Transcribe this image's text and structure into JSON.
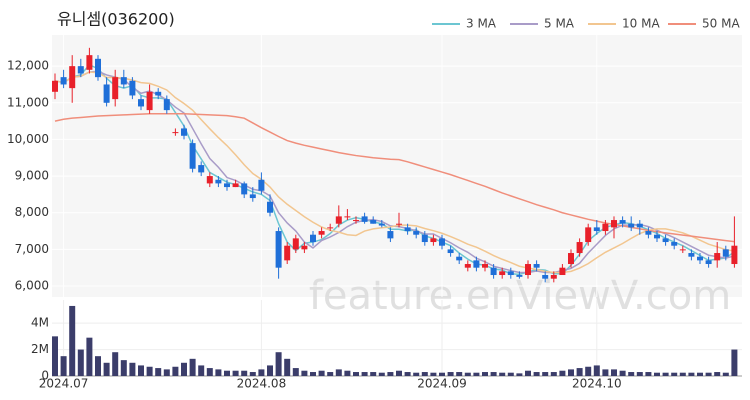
{
  "chart_data": {
    "type": "candlestick",
    "title": "유니셈(036200)",
    "annotation": "feature.enViewV.com",
    "categories": [
      null,
      "2024.07",
      null,
      null,
      null,
      null,
      null,
      null,
      null,
      null,
      null,
      null,
      null,
      null,
      null,
      null,
      null,
      null,
      null,
      null,
      null,
      null,
      null,
      null,
      "2024.08",
      null,
      null,
      null,
      null,
      null,
      null,
      null,
      null,
      null,
      null,
      null,
      null,
      null,
      null,
      null,
      null,
      null,
      null,
      null,
      null,
      "2024.09",
      null,
      null,
      null,
      null,
      null,
      null,
      null,
      null,
      null,
      null,
      null,
      null,
      null,
      null,
      null,
      null,
      null,
      "2024.10",
      null,
      null,
      null,
      null,
      null,
      null,
      null,
      null,
      null,
      null,
      null,
      null,
      null,
      null,
      null,
      null
    ],
    "open": [
      11300,
      11700,
      11400,
      12000,
      11900,
      12200,
      11500,
      11100,
      11700,
      11600,
      11100,
      10800,
      11300,
      11100,
      10200,
      10300,
      9900,
      9300,
      8800,
      8900,
      8800,
      8700,
      8800,
      8500,
      8900,
      8300,
      7500,
      6700,
      7000,
      7000,
      7400,
      7400,
      7600,
      7700,
      7900,
      7800,
      7900,
      7800,
      7700,
      7500,
      7700,
      7600,
      7500,
      7400,
      7200,
      7300,
      7000,
      6800,
      6500,
      6700,
      6500,
      6500,
      6300,
      6400,
      6300,
      6300,
      6600,
      6300,
      6200,
      6300,
      6600,
      6900,
      7200,
      7600,
      7500,
      7600,
      7800,
      7700,
      7700,
      7500,
      7400,
      7300,
      7200,
      7000,
      6900,
      6800,
      6700,
      6700,
      7000,
      6600
    ],
    "high": [
      11800,
      11900,
      12300,
      12200,
      12500,
      12300,
      11700,
      11900,
      11900,
      11700,
      11200,
      11500,
      11400,
      11200,
      10300,
      10400,
      10000,
      9400,
      9100,
      9000,
      8900,
      8900,
      8850,
      8700,
      9100,
      8500,
      7600,
      7200,
      7400,
      7200,
      7500,
      7600,
      7700,
      8200,
      8100,
      7900,
      8000,
      7900,
      7800,
      7600,
      8000,
      7700,
      7600,
      7500,
      7400,
      7400,
      7100,
      6900,
      6700,
      6800,
      6700,
      6600,
      6500,
      6500,
      6400,
      6700,
      6700,
      6400,
      6400,
      6600,
      7000,
      7300,
      7700,
      7800,
      7800,
      7900,
      7900,
      7900,
      7800,
      7600,
      7500,
      7400,
      7300,
      7100,
      7000,
      6900,
      6800,
      7200,
      7100,
      7900
    ],
    "low": [
      11100,
      11400,
      11000,
      11700,
      11800,
      11600,
      10900,
      10900,
      11400,
      11100,
      10800,
      10700,
      11100,
      10700,
      10100,
      10000,
      9100,
      9000,
      8700,
      8700,
      8600,
      8700,
      8400,
      8300,
      8500,
      7900,
      6200,
      6600,
      6900,
      6900,
      7100,
      7300,
      7500,
      7600,
      7800,
      7700,
      7700,
      7700,
      7600,
      7200,
      7600,
      7400,
      7300,
      7100,
      7100,
      7000,
      6800,
      6600,
      6400,
      6400,
      6400,
      6200,
      6200,
      6200,
      6200,
      6200,
      6400,
      6100,
      6100,
      6300,
      6500,
      6800,
      7100,
      7400,
      7400,
      7300,
      7600,
      7500,
      7400,
      7300,
      7200,
      7100,
      7000,
      6900,
      6700,
      6600,
      6500,
      6500,
      6700,
      6500
    ],
    "close": [
      11600,
      11500,
      12000,
      11800,
      12300,
      11700,
      11000,
      11700,
      11500,
      11200,
      10900,
      11300,
      11200,
      10800,
      10200,
      10100,
      9200,
      9100,
      9000,
      8800,
      8700,
      8800,
      8500,
      8400,
      8600,
      8000,
      6500,
      7100,
      7300,
      7100,
      7200,
      7500,
      7600,
      7900,
      7900,
      7800,
      7750,
      7700,
      7650,
      7300,
      7700,
      7500,
      7400,
      7200,
      7300,
      7100,
      6900,
      6700,
      6600,
      6500,
      6600,
      6300,
      6400,
      6300,
      6250,
      6600,
      6500,
      6200,
      6300,
      6500,
      6900,
      7200,
      7600,
      7500,
      7700,
      7800,
      7700,
      7600,
      7600,
      7400,
      7300,
      7200,
      7100,
      7000,
      6800,
      6700,
      6600,
      6900,
      6800,
      7100
    ],
    "up_color": "#e8202a",
    "down_color": "#1f6fd8",
    "ylim": [
      5700,
      12850
    ],
    "yticks": [
      {
        "value": 6000,
        "label": "6,000"
      },
      {
        "value": 7000,
        "label": "7,000"
      },
      {
        "value": 8000,
        "label": "8,000"
      },
      {
        "value": 9000,
        "label": "9,000"
      },
      {
        "value": 10000,
        "label": "10,000"
      },
      {
        "value": 11000,
        "label": "11,000"
      },
      {
        "value": 12000,
        "label": "12,000"
      }
    ],
    "grid": true,
    "legend": "top-right",
    "series": [
      {
        "name": "3 MA",
        "color": "#6cc6d2",
        "values": [
          11600,
          11550,
          11700,
          11767,
          12033,
          11933,
          11667,
          11467,
          11400,
          11467,
          11200,
          11133,
          11133,
          11100,
          10733,
          10367,
          9833,
          9467,
          9100,
          8967,
          8833,
          8767,
          8667,
          8567,
          8500,
          8333,
          7700,
          7200,
          6967,
          7167,
          7200,
          7267,
          7433,
          7667,
          7800,
          7867,
          7817,
          7750,
          7700,
          7550,
          7550,
          7500,
          7533,
          7367,
          7300,
          7200,
          7100,
          6900,
          6733,
          6600,
          6567,
          6467,
          6433,
          6333,
          6317,
          6383,
          6450,
          6433,
          6333,
          6333,
          6567,
          6867,
          7233,
          7433,
          7600,
          7667,
          7733,
          7700,
          7633,
          7533,
          7433,
          7300,
          7200,
          7100,
          6967,
          6833,
          6700,
          6733,
          6767,
          6933
        ]
      },
      {
        "name": "5 MA",
        "color": "#a99cc8",
        "values": [
          11600,
          11550,
          11700,
          11725,
          11840,
          11860,
          11760,
          11700,
          11640,
          11420,
          11260,
          11320,
          11220,
          11080,
          10880,
          10720,
          10300,
          9880,
          9480,
          9240,
          8960,
          8880,
          8760,
          8640,
          8600,
          8460,
          8000,
          7720,
          7500,
          7200,
          7040,
          7240,
          7340,
          7460,
          7620,
          7740,
          7790,
          7810,
          7760,
          7640,
          7620,
          7570,
          7510,
          7420,
          7420,
          7300,
          7180,
          7040,
          6920,
          6760,
          6660,
          6540,
          6480,
          6420,
          6370,
          6370,
          6410,
          6370,
          6370,
          6420,
          6480,
          6620,
          6900,
          7140,
          7380,
          7560,
          7660,
          7660,
          7680,
          7620,
          7520,
          7420,
          7320,
          7200,
          7080,
          6960,
          6840,
          6800,
          6760,
          6820
        ]
      },
      {
        "name": "10 MA",
        "color": "#f2c690",
        "values": [
          11600,
          11550,
          11700,
          11725,
          11840,
          11820,
          11690,
          11690,
          11670,
          11620,
          11550,
          11530,
          11450,
          11350,
          11140,
          10980,
          10800,
          10540,
          10290,
          10050,
          9830,
          9580,
          9310,
          9070,
          8910,
          8700,
          8430,
          8230,
          8060,
          7890,
          7740,
          7610,
          7520,
          7470,
          7400,
          7380,
          7500,
          7560,
          7590,
          7610,
          7660,
          7660,
          7640,
          7570,
          7510,
          7440,
          7350,
          7250,
          7140,
          7060,
          6950,
          6830,
          6730,
          6640,
          6540,
          6490,
          6450,
          6400,
          6370,
          6370,
          6400,
          6490,
          6610,
          6770,
          6920,
          7040,
          7160,
          7300,
          7430,
          7520,
          7560,
          7560,
          7510,
          7450,
          7360,
          7250,
          7140,
          7070,
          6990,
          6960
        ]
      },
      {
        "name": "50 MA",
        "color": "#f08e7b",
        "values": [
          10500,
          10550,
          10580,
          10600,
          10620,
          10640,
          10650,
          10660,
          10670,
          10680,
          10690,
          10700,
          10700,
          10700,
          10700,
          10700,
          10690,
          10680,
          10670,
          10660,
          10650,
          10620,
          10580,
          10450,
          10320,
          10200,
          10080,
          9970,
          9900,
          9840,
          9790,
          9740,
          9690,
          9640,
          9600,
          9560,
          9530,
          9500,
          9480,
          9460,
          9450,
          9390,
          9320,
          9250,
          9180,
          9110,
          9040,
          8960,
          8880,
          8800,
          8720,
          8630,
          8540,
          8460,
          8380,
          8300,
          8220,
          8150,
          8080,
          8000,
          7940,
          7880,
          7820,
          7770,
          7720,
          7680,
          7640,
          7600,
          7560,
          7520,
          7480,
          7450,
          7420,
          7390,
          7360,
          7330,
          7300,
          7270,
          7240,
          7210
        ]
      }
    ],
    "volume": {
      "color": "#3b3d6a",
      "ylim": [
        0,
        5750000
      ],
      "yticks": [
        0,
        {
          "value": 2000000,
          "label": "2M"
        },
        {
          "value": 4000000,
          "label": "4M"
        }
      ],
      "values": [
        3000000,
        1500000,
        5300000,
        2000000,
        2900000,
        1500000,
        1000000,
        1800000,
        1200000,
        1000000,
        800000,
        700000,
        600000,
        500000,
        700000,
        1000000,
        1300000,
        800000,
        600000,
        500000,
        400000,
        400000,
        400000,
        300000,
        500000,
        800000,
        1800000,
        1300000,
        600000,
        400000,
        300000,
        400000,
        300000,
        500000,
        400000,
        300000,
        300000,
        300000,
        250000,
        300000,
        400000,
        300000,
        250000,
        300000,
        250000,
        250000,
        300000,
        300000,
        250000,
        250000,
        300000,
        300000,
        250000,
        250000,
        200000,
        400000,
        300000,
        300000,
        300000,
        400000,
        500000,
        600000,
        700000,
        800000,
        500000,
        500000,
        400000,
        300000,
        300000,
        300000,
        250000,
        250000,
        250000,
        250000,
        250000,
        250000,
        250000,
        300000,
        250000,
        2000000
      ]
    }
  }
}
